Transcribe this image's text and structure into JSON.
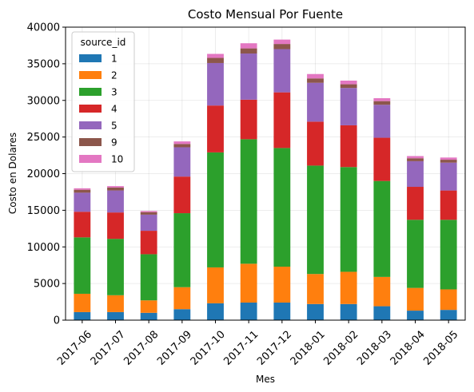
{
  "chart_data": {
    "type": "bar",
    "stacked": true,
    "title": "Costo Mensual Por Fuente",
    "xlabel": "Mes",
    "ylabel": "Costo en Dolares",
    "ylim": [
      0,
      40000
    ],
    "yticks": [
      "0",
      "5000",
      "10000",
      "15000",
      "20000",
      "25000",
      "30000",
      "35000",
      "40000"
    ],
    "grid": true,
    "legend_placement": "top-left",
    "legend_title": "source_id",
    "categories": [
      "2017-06",
      "2017-07",
      "2017-08",
      "2017-09",
      "2017-10",
      "2017-11",
      "2017-12",
      "2018-01",
      "2018-02",
      "2018-03",
      "2018-04",
      "2018-05"
    ],
    "series": [
      {
        "name": "1",
        "color": "#1f77b4",
        "values": [
          1100,
          1100,
          1000,
          1500,
          2300,
          2400,
          2400,
          2200,
          2200,
          1900,
          1300,
          1400
        ]
      },
      {
        "name": "2",
        "color": "#ff7f0e",
        "values": [
          2500,
          2300,
          1700,
          3000,
          4900,
          5300,
          4900,
          4100,
          4400,
          4000,
          3100,
          2800
        ]
      },
      {
        "name": "3",
        "color": "#2ca02c",
        "values": [
          7700,
          7700,
          6300,
          10100,
          15700,
          17000,
          16200,
          14800,
          14300,
          13100,
          9300,
          9500
        ]
      },
      {
        "name": "4",
        "color": "#d62728",
        "values": [
          3500,
          3600,
          3200,
          5000,
          6400,
          5400,
          7600,
          6000,
          5700,
          5900,
          4500,
          4000
        ]
      },
      {
        "name": "5",
        "color": "#9467bd",
        "values": [
          2600,
          3000,
          2200,
          4000,
          5800,
          6300,
          5900,
          5300,
          5100,
          4500,
          3500,
          3800
        ]
      },
      {
        "name": "9",
        "color": "#8c564b",
        "values": [
          400,
          400,
          350,
          450,
          700,
          700,
          700,
          600,
          500,
          500,
          400,
          400
        ]
      },
      {
        "name": "10",
        "color": "#e377c2",
        "values": [
          200,
          200,
          150,
          350,
          550,
          700,
          600,
          600,
          500,
          400,
          300,
          300
        ]
      }
    ]
  }
}
